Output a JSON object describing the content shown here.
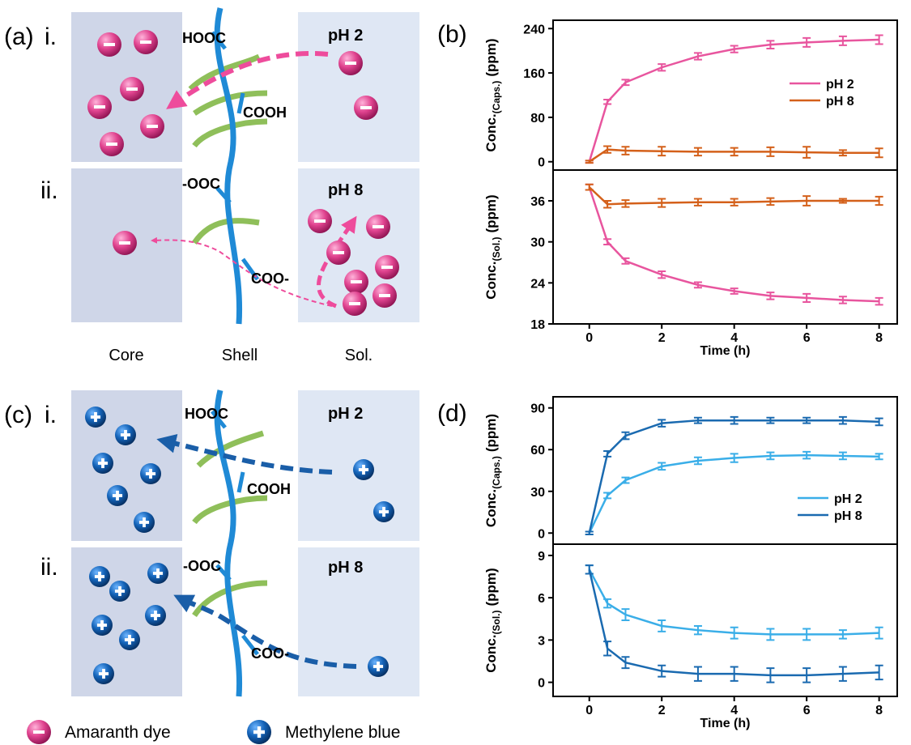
{
  "panels": {
    "a": "(a)",
    "b": "(b)",
    "c": "(c)",
    "d": "(d)"
  },
  "schematic": {
    "a": {
      "i": "i.",
      "ii": "ii.",
      "hooc": "HOOC",
      "cooh": "COOH",
      "ooc": "-OOC",
      "coo": "COO-",
      "ph_i": "pH 2",
      "ph_ii": "pH 8"
    },
    "c": {
      "i": "i.",
      "ii": "ii.",
      "hooc": "HOOC",
      "cooh": "COOH",
      "ooc": "-OOC",
      "coo": "COO-",
      "ph_i": "pH 2",
      "ph_ii": "pH 8"
    },
    "columns": [
      "Core",
      "Shell",
      "Sol."
    ],
    "legend": [
      "Amaranth dye",
      "Methylene blue"
    ]
  },
  "chart_data": [
    {
      "type": "line",
      "ylabel": [
        "Conc.",
        "(Caps.)",
        "(ppm)"
      ],
      "x": [
        0,
        0.5,
        1,
        2,
        3,
        4,
        5,
        6,
        7,
        8
      ],
      "xlim": [
        -1,
        8.5
      ],
      "ylim": [
        -15,
        255
      ],
      "yticks": [
        0,
        80,
        160,
        240
      ],
      "series": [
        {
          "name": "pH 2",
          "color": "#e8559e",
          "values": [
            0,
            108,
            143,
            170,
            190,
            203,
            211,
            215,
            218,
            220
          ],
          "errors": [
            2,
            4,
            5,
            6,
            6,
            6,
            7,
            8,
            8,
            8
          ]
        },
        {
          "name": "pH 8",
          "color": "#d4601a",
          "values": [
            0,
            22,
            20,
            19,
            18,
            18,
            18,
            17,
            16,
            16
          ],
          "errors": [
            2,
            6,
            7,
            8,
            7,
            7,
            8,
            10,
            5,
            8
          ]
        }
      ]
    },
    {
      "type": "line",
      "ylabel": [
        "Conc.",
        "(Sol.)",
        "(ppm)"
      ],
      "x": [
        0,
        0.5,
        1,
        2,
        3,
        4,
        5,
        6,
        7,
        8
      ],
      "xlim": [
        -1,
        8.5
      ],
      "ylim": [
        18,
        40.5
      ],
      "yticks": [
        18,
        24,
        30,
        36
      ],
      "xticks": [
        0,
        2,
        4,
        6,
        8
      ],
      "xlabel": "Time (h)",
      "series": [
        {
          "color": "#e8559e",
          "values": [
            38,
            30,
            27.2,
            25.2,
            23.7,
            22.8,
            22.1,
            21.8,
            21.5,
            21.3
          ],
          "errors": [
            0.4,
            0.4,
            0.4,
            0.5,
            0.4,
            0.4,
            0.5,
            0.6,
            0.5,
            0.5
          ]
        },
        {
          "color": "#d4601a",
          "values": [
            38,
            35.5,
            35.6,
            35.7,
            35.8,
            35.8,
            35.9,
            36,
            36,
            36
          ],
          "errors": [
            0.4,
            0.5,
            0.5,
            0.6,
            0.5,
            0.5,
            0.5,
            0.7,
            0.3,
            0.6
          ]
        }
      ]
    },
    {
      "type": "line",
      "ylabel": [
        "Conc.",
        "(Caps.)",
        "(ppm)"
      ],
      "x": [
        0,
        0.5,
        1,
        2,
        3,
        4,
        5,
        6,
        7,
        8
      ],
      "xlim": [
        -1,
        8.5
      ],
      "ylim": [
        -8,
        98
      ],
      "yticks": [
        0,
        30,
        60,
        90
      ],
      "series": [
        {
          "name": "pH 2",
          "color": "#3aaee8",
          "values": [
            0,
            27,
            38,
            48,
            52,
            54,
            55.5,
            56,
            55.5,
            55
          ],
          "errors": [
            1,
            2,
            2,
            2.5,
            2.5,
            3,
            2.5,
            2.5,
            2.5,
            2
          ]
        },
        {
          "name": "pH 8",
          "color": "#1a6ab0",
          "values": [
            0,
            57,
            70,
            79,
            81,
            81,
            81,
            81,
            81,
            80
          ],
          "errors": [
            1,
            2,
            2.5,
            2.5,
            2,
            2.5,
            2,
            2,
            2.5,
            2.5
          ]
        }
      ]
    },
    {
      "type": "line",
      "ylabel": [
        "Conc.",
        "(Sol.)",
        "(ppm)"
      ],
      "x": [
        0,
        0.5,
        1,
        2,
        3,
        4,
        5,
        6,
        7,
        8
      ],
      "xlim": [
        -1,
        8.5
      ],
      "ylim": [
        -1,
        9.8
      ],
      "yticks": [
        0,
        3,
        6,
        9
      ],
      "xticks": [
        0,
        2,
        4,
        6,
        8
      ],
      "xlabel": "Time (h)",
      "series": [
        {
          "color": "#3aaee8",
          "values": [
            8,
            5.6,
            4.8,
            4.0,
            3.7,
            3.5,
            3.4,
            3.4,
            3.4,
            3.5
          ],
          "errors": [
            0.3,
            0.3,
            0.4,
            0.4,
            0.3,
            0.4,
            0.4,
            0.4,
            0.3,
            0.4
          ]
        },
        {
          "color": "#1a6ab0",
          "values": [
            8,
            2.4,
            1.4,
            0.8,
            0.6,
            0.6,
            0.5,
            0.5,
            0.6,
            0.7
          ],
          "errors": [
            0.3,
            0.5,
            0.4,
            0.4,
            0.5,
            0.5,
            0.5,
            0.5,
            0.5,
            0.5
          ]
        }
      ]
    }
  ]
}
